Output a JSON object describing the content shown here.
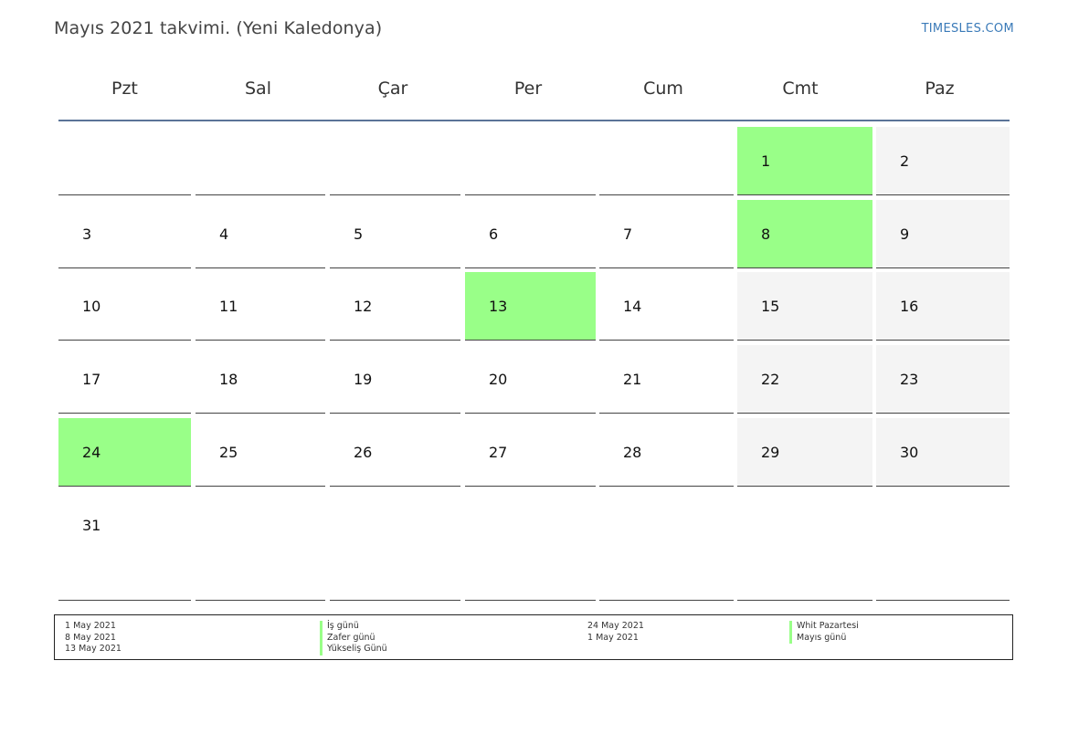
{
  "title": "Mayıs 2021 takvimi. (Yeni Kaledonya)",
  "brand": "TIMESLES.COM",
  "colors": {
    "holiday": "#99ff88",
    "weekend": "#f4f4f4",
    "header_rule": "#5b7498"
  },
  "weekdays": [
    "Pzt",
    "Sal",
    "Çar",
    "Per",
    "Cum",
    "Cmt",
    "Paz"
  ],
  "weeks": [
    [
      "",
      "",
      "",
      "",
      "",
      "1",
      "2"
    ],
    [
      "3",
      "4",
      "5",
      "6",
      "7",
      "8",
      "9"
    ],
    [
      "10",
      "11",
      "12",
      "13",
      "14",
      "15",
      "16"
    ],
    [
      "17",
      "18",
      "19",
      "20",
      "21",
      "22",
      "23"
    ],
    [
      "24",
      "25",
      "26",
      "27",
      "28",
      "29",
      "30"
    ],
    [
      "31",
      "",
      "",
      "",
      "",
      "",
      ""
    ]
  ],
  "holiday_days": [
    "1",
    "8",
    "13",
    "24"
  ],
  "legend": {
    "left_dates": [
      "1 May 2021",
      "8 May 2021",
      "13 May 2021"
    ],
    "left_names": [
      "İş günü",
      "Zafer günü",
      "Yükseliş Günü"
    ],
    "right_dates": [
      "24 May 2021",
      "1 May 2021"
    ],
    "right_names": [
      "Whit Pazartesi",
      "Mayıs günü"
    ]
  }
}
